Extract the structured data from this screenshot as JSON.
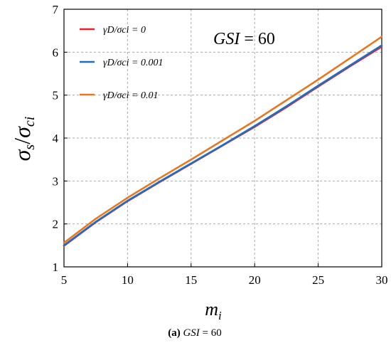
{
  "chart_data": {
    "type": "line",
    "xlabel": "m",
    "xlabel_sub": "i",
    "ylabel_main": "σ",
    "ylabel_sub1": "s",
    "ylabel_slash": "/",
    "ylabel_sub2": "ci",
    "xlim": [
      5,
      30
    ],
    "ylim": [
      1,
      7
    ],
    "xticks": [
      5,
      10,
      15,
      20,
      25,
      30
    ],
    "yticks": [
      1,
      2,
      3,
      4,
      5,
      6,
      7
    ],
    "grid": true,
    "legend_position": "top-left",
    "annotation": {
      "text_italic": "GSI",
      "text_rest": " = 60"
    },
    "caption": {
      "bold": "(a)",
      "italic": "GSI",
      "rest": " = 60"
    },
    "series": [
      {
        "name": "γD/σci = 0",
        "color": "#e8202a",
        "x": [
          5,
          7.5,
          10,
          12.5,
          15,
          17.5,
          20,
          22.5,
          25,
          27.5,
          30
        ],
        "y": [
          1.49,
          2.04,
          2.53,
          2.97,
          3.4,
          3.83,
          4.26,
          4.72,
          5.2,
          5.67,
          6.13
        ]
      },
      {
        "name": "γD/σci = 0.001",
        "color": "#1f6fbf",
        "x": [
          5,
          7.5,
          10,
          12.5,
          15,
          17.5,
          20,
          22.5,
          25,
          27.5,
          30
        ],
        "y": [
          1.5,
          2.05,
          2.54,
          2.98,
          3.41,
          3.84,
          4.28,
          4.74,
          5.22,
          5.69,
          6.16
        ]
      },
      {
        "name": "γD/σci = 0.01",
        "color": "#e87722",
        "x": [
          5,
          7.5,
          10,
          12.5,
          15,
          17.5,
          20,
          22.5,
          25,
          27.5,
          30
        ],
        "y": [
          1.56,
          2.12,
          2.61,
          3.06,
          3.5,
          3.95,
          4.4,
          4.88,
          5.36,
          5.86,
          6.36
        ]
      }
    ]
  }
}
